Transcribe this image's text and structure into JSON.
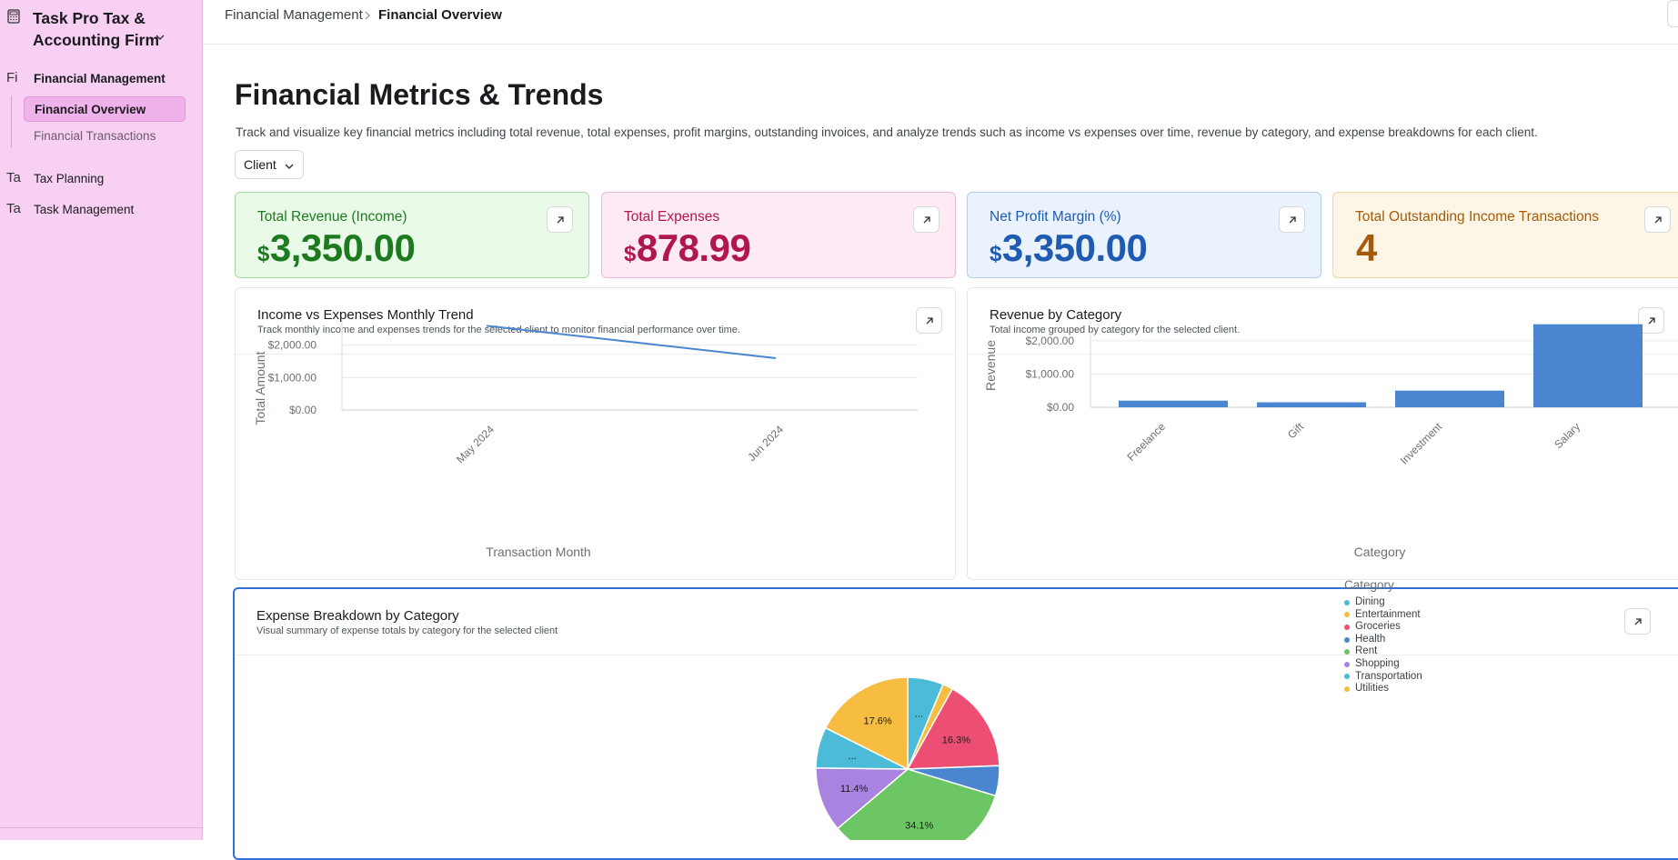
{
  "sidebar": {
    "firm_name": "Task Pro Tax & Accounting Firm",
    "groups": [
      {
        "abbr": "Fi",
        "label": "Financial Management"
      },
      {
        "abbr": "Ta",
        "label": "Tax Planning"
      },
      {
        "abbr": "Ta",
        "label": "Task Management"
      }
    ],
    "sub_items": [
      {
        "label": "Financial Overview",
        "active": true
      },
      {
        "label": "Financial Transactions",
        "active": false
      }
    ]
  },
  "breadcrumb": {
    "parent": "Financial Management",
    "current": "Financial Overview"
  },
  "page": {
    "title": "Financial Metrics & Trends",
    "description": "Track and visualize key financial metrics including total revenue, total expenses, profit margins, outstanding invoices, and analyze trends such as income vs expenses over time, revenue by category, and expense breakdowns for each client.",
    "filter_label": "Client"
  },
  "kpis": [
    {
      "label": "Total Revenue (Income)",
      "currency": "$",
      "value": "3,350.00",
      "bg": "#e9fae9",
      "border": "#a6dca6",
      "color": "#1e7a1e"
    },
    {
      "label": "Total Expenses",
      "currency": "$",
      "value": "878.99",
      "bg": "#fdeaf5",
      "border": "#f0b8d8",
      "color": "#b0174d"
    },
    {
      "label": "Net Profit Margin (%)",
      "currency": "$",
      "value": "3,350.00",
      "bg": "#eaf2fd",
      "border": "#b5cdf0",
      "color": "#1f5bb0"
    },
    {
      "label": "Total Outstanding Income Transactions",
      "currency": "",
      "value": "4",
      "bg": "#fdf6e6",
      "border": "#f2d9a0",
      "color": "#a65a08"
    }
  ],
  "cards": {
    "trend": {
      "title": "Income vs Expenses Monthly Trend",
      "subtitle": "Track monthly income and expenses trends for the selected client to monitor financial performance over time."
    },
    "revenue": {
      "title": "Revenue by Category",
      "subtitle": "Total income grouped by category for the selected client."
    },
    "expense": {
      "title": "Expense Breakdown by Category",
      "subtitle": "Visual summary of expense totals by category for the selected client"
    }
  },
  "chart_data": [
    {
      "type": "line",
      "title": "Income vs Expenses Monthly Trend",
      "xlabel": "Transaction Month",
      "ylabel": "Total Amount",
      "x": [
        "May 2024",
        "Jun 2024"
      ],
      "series": [
        {
          "values": [
            2600,
            1600
          ],
          "color": "#4a86d0"
        }
      ],
      "y_ticks": [
        "$0.00",
        "$1,000.00",
        "$2,000.00"
      ],
      "ylim": [
        0,
        2750
      ],
      "grid": true
    },
    {
      "type": "bar",
      "title": "Revenue by Category",
      "xlabel": "Category",
      "ylabel": "Revenue",
      "categories": [
        "Freelance",
        "Gift",
        "Investment",
        "Salary"
      ],
      "values": [
        200,
        150,
        500,
        2500
      ],
      "y_ticks": [
        "$0.00",
        "$1,000.00",
        "$2,000.00"
      ],
      "ylim": [
        0,
        2600
      ],
      "color": "#4a86d0",
      "grid": true
    },
    {
      "type": "pie",
      "title": "Expense Breakdown by Category",
      "legend_title": "Category",
      "legend_position": "right",
      "slices": [
        {
          "label": "Dining",
          "value": 6.3,
          "text": "...",
          "color": "#4bbbd8"
        },
        {
          "label": "Entertainment",
          "value": 1.8,
          "text": "",
          "color": "#f6bd40"
        },
        {
          "label": "Groceries",
          "value": 16.3,
          "text": "16.3%",
          "color": "#ec4f73"
        },
        {
          "label": "Health",
          "value": 5.3,
          "text": "",
          "color": "#4a86d0"
        },
        {
          "label": "Rent",
          "value": 34.1,
          "text": "34.1%",
          "color": "#6dc664"
        },
        {
          "label": "Shopping",
          "value": 11.4,
          "text": "11.4%",
          "color": "#a883df"
        },
        {
          "label": "Transportation",
          "value": 7.2,
          "text": "...",
          "color": "#4bbbd8"
        },
        {
          "label": "Utilities",
          "value": 17.6,
          "text": "17.6%",
          "color": "#f6bd40"
        }
      ]
    }
  ]
}
